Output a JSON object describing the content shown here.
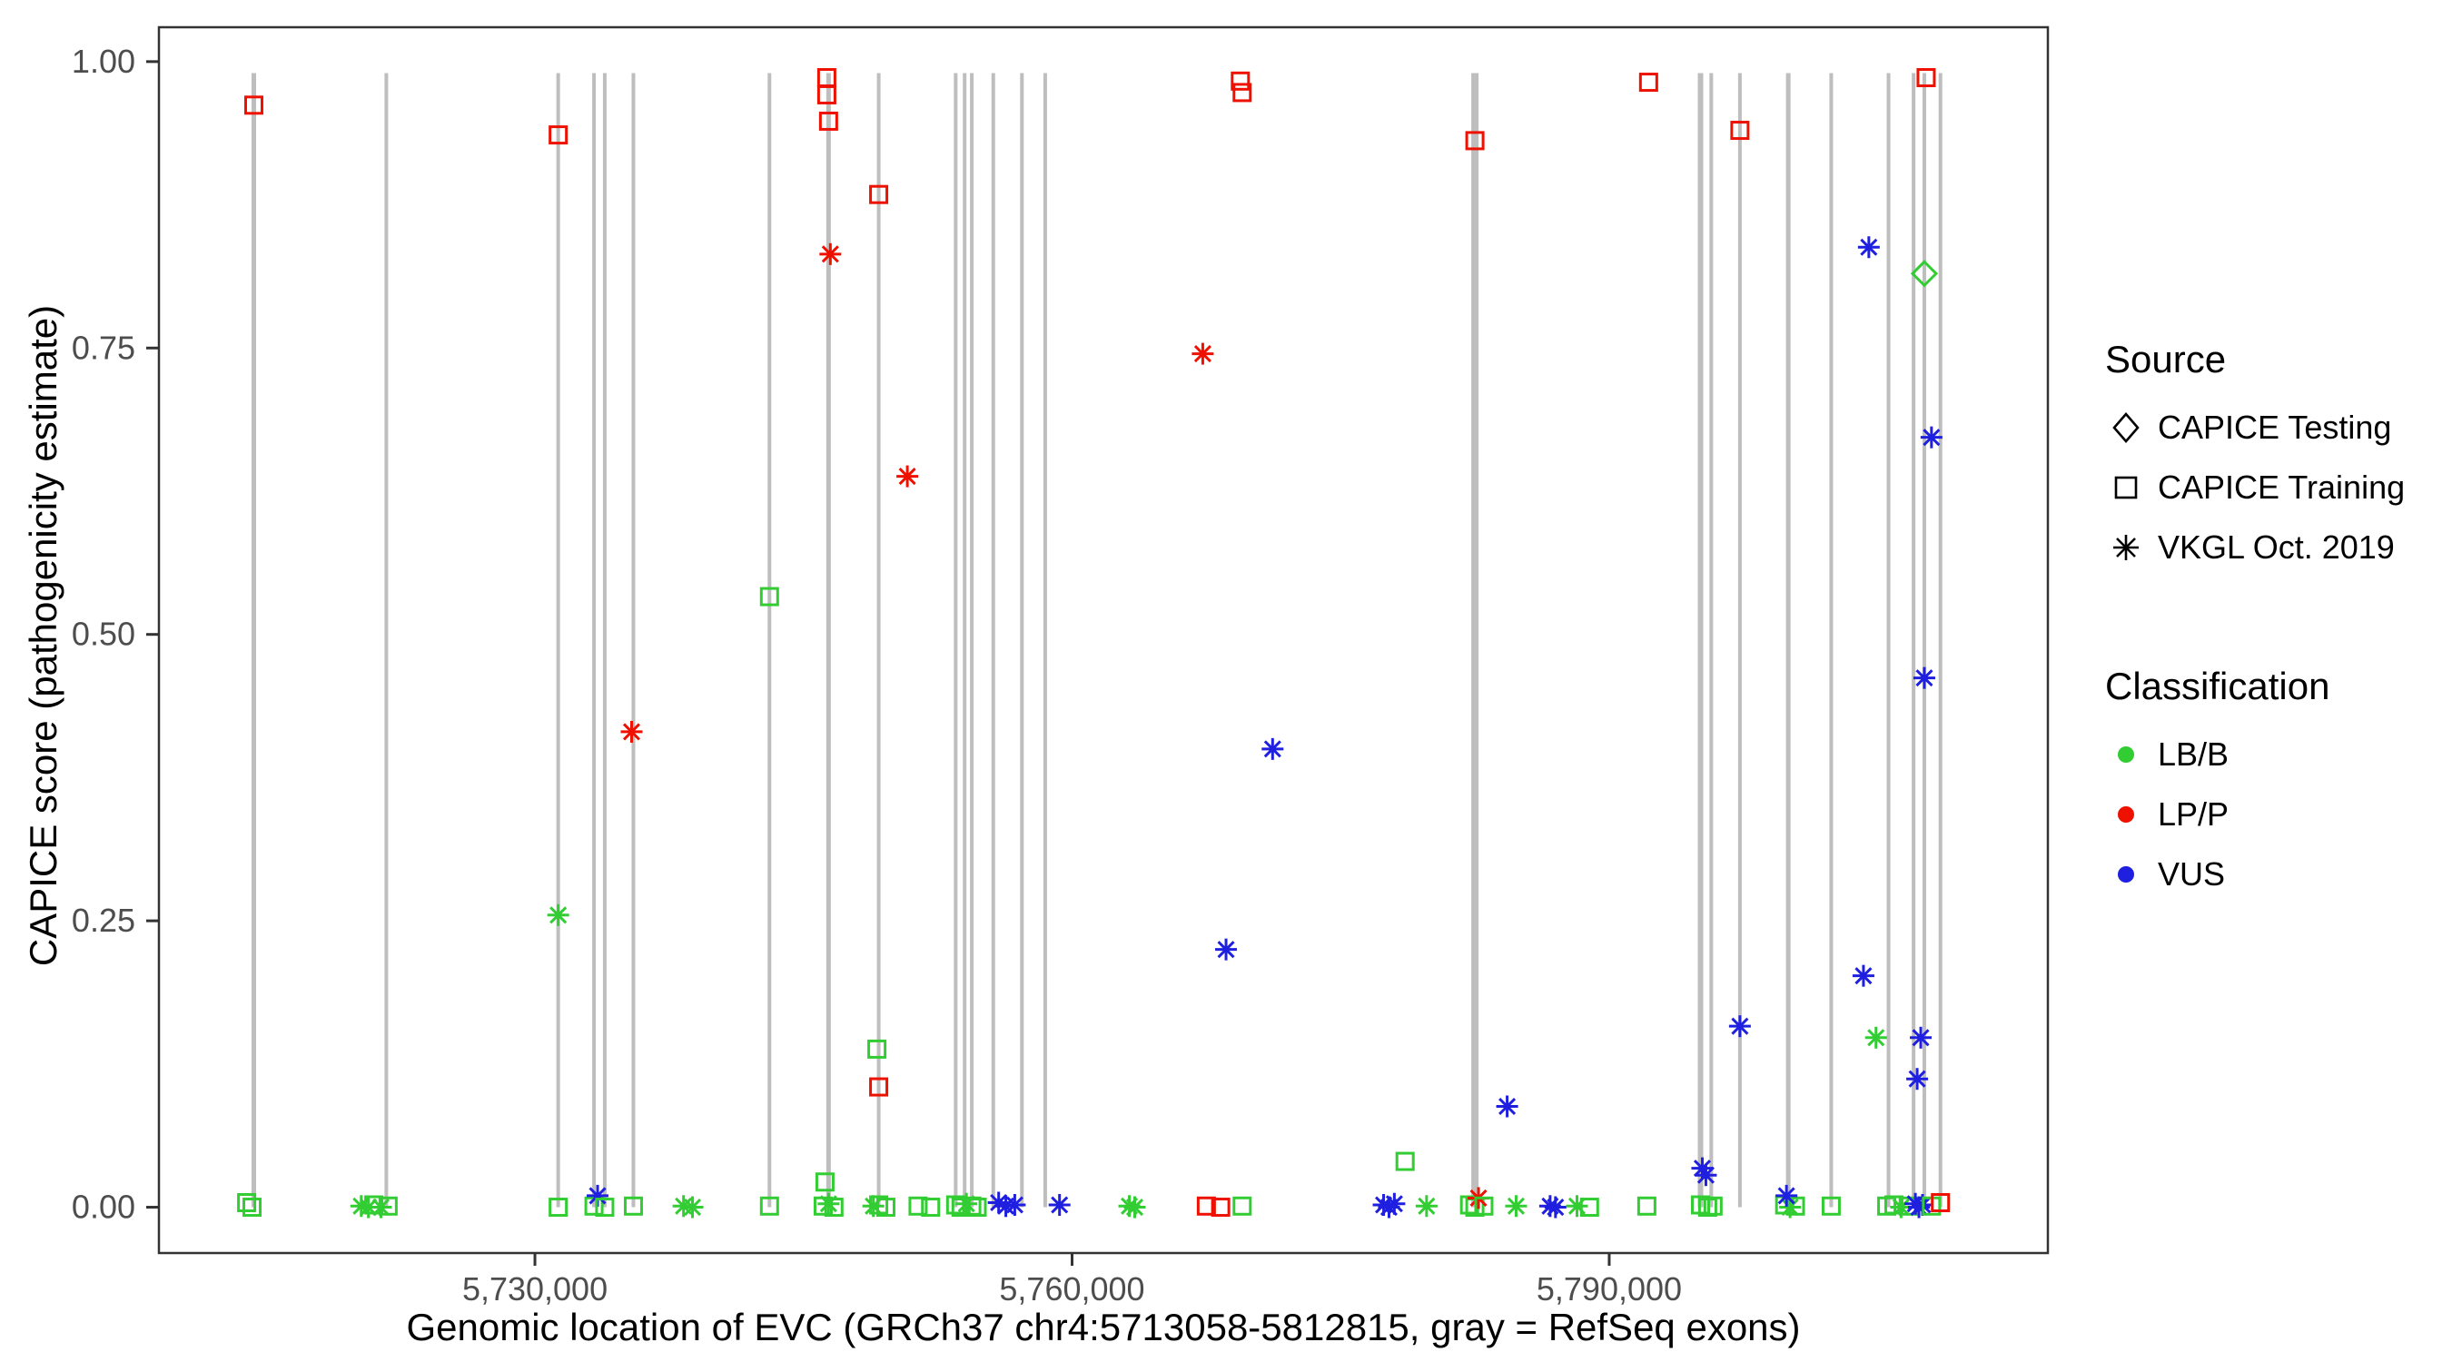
{
  "figure": {
    "xlabel": "Genomic location of EVC (GRCh37 chr4:5713058-5812815, gray = RefSeq exons)",
    "ylabel": "CAPICE score (pathogenicity estimate)"
  },
  "legend": {
    "source": {
      "title": "Source",
      "items": [
        {
          "label": "CAPICE Testing",
          "shape": "diamond"
        },
        {
          "label": "CAPICE Training",
          "shape": "square"
        },
        {
          "label": "VKGL Oct. 2019",
          "shape": "asterisk"
        }
      ]
    },
    "classification": {
      "title": "Classification",
      "items": [
        {
          "label": "LB/B",
          "color": "#32CD32"
        },
        {
          "label": "LP/P",
          "color": "#EE1100"
        },
        {
          "label": "VUS",
          "color": "#1F1FE0"
        }
      ]
    }
  },
  "chart_data": {
    "type": "scatter",
    "title": "",
    "xlabel": "Genomic location of EVC (GRCh37 chr4:5713058-5812815, gray = RefSeq exons)",
    "ylabel": "CAPICE score (pathogenicity estimate)",
    "xlim": [
      5713058,
      5812815
    ],
    "ylim": [
      0,
      1
    ],
    "x_ticks": [
      {
        "value": 5730000,
        "label": "5,730,000"
      },
      {
        "value": 5760000,
        "label": "5,760,000"
      },
      {
        "value": 5790000,
        "label": "5,790,000"
      }
    ],
    "y_ticks": [
      {
        "value": 0.0,
        "label": "0.00"
      },
      {
        "value": 0.25,
        "label": "0.25"
      },
      {
        "value": 0.5,
        "label": "0.50"
      },
      {
        "value": 0.75,
        "label": "0.75"
      },
      {
        "value": 1.0,
        "label": "1.00"
      }
    ],
    "exon_color": "#BEBEBE",
    "exons": [
      {
        "x": 5714300,
        "w": 5
      },
      {
        "x": 5721700,
        "w": 4
      },
      {
        "x": 5731300,
        "w": 4
      },
      {
        "x": 5733300,
        "w": 4
      },
      {
        "x": 5733900,
        "w": 4
      },
      {
        "x": 5735500,
        "w": 4
      },
      {
        "x": 5743100,
        "w": 4
      },
      {
        "x": 5746400,
        "w": 5
      },
      {
        "x": 5749200,
        "w": 4
      },
      {
        "x": 5753500,
        "w": 4
      },
      {
        "x": 5754000,
        "w": 4
      },
      {
        "x": 5754400,
        "w": 4
      },
      {
        "x": 5755600,
        "w": 4
      },
      {
        "x": 5757200,
        "w": 4
      },
      {
        "x": 5758500,
        "w": 4
      },
      {
        "x": 5782500,
        "w": 8
      },
      {
        "x": 5795100,
        "w": 6
      },
      {
        "x": 5795700,
        "w": 4
      },
      {
        "x": 5797300,
        "w": 4
      },
      {
        "x": 5800000,
        "w": 5
      },
      {
        "x": 5802400,
        "w": 4
      },
      {
        "x": 5805600,
        "w": 4
      },
      {
        "x": 5807000,
        "w": 4
      },
      {
        "x": 5807600,
        "w": 4
      },
      {
        "x": 5808500,
        "w": 4
      }
    ],
    "colors": {
      "LB/B": "#32CD32",
      "LP/P": "#EE1100",
      "VUS": "#1F1FE0"
    },
    "shapes": {
      "testing": "diamond",
      "training": "square",
      "vkgl": "asterisk"
    },
    "points": [
      {
        "x": 5714300,
        "y": 0.962,
        "source": "training",
        "cls": "LP/P"
      },
      {
        "x": 5731300,
        "y": 0.936,
        "source": "training",
        "cls": "LP/P"
      },
      {
        "x": 5746300,
        "y": 0.986,
        "source": "training",
        "cls": "LP/P"
      },
      {
        "x": 5746300,
        "y": 0.971,
        "source": "training",
        "cls": "LP/P"
      },
      {
        "x": 5746400,
        "y": 0.948,
        "source": "training",
        "cls": "LP/P"
      },
      {
        "x": 5749200,
        "y": 0.884,
        "source": "training",
        "cls": "LP/P"
      },
      {
        "x": 5746500,
        "y": 0.832,
        "source": "vkgl",
        "cls": "LP/P"
      },
      {
        "x": 5750800,
        "y": 0.638,
        "source": "vkgl",
        "cls": "LP/P"
      },
      {
        "x": 5735400,
        "y": 0.415,
        "source": "vkgl",
        "cls": "LP/P"
      },
      {
        "x": 5767300,
        "y": 0.745,
        "source": "vkgl",
        "cls": "LP/P"
      },
      {
        "x": 5769400,
        "y": 0.983,
        "source": "training",
        "cls": "LP/P"
      },
      {
        "x": 5769500,
        "y": 0.973,
        "source": "training",
        "cls": "LP/P"
      },
      {
        "x": 5782500,
        "y": 0.931,
        "source": "training",
        "cls": "LP/P"
      },
      {
        "x": 5792200,
        "y": 0.982,
        "source": "training",
        "cls": "LP/P"
      },
      {
        "x": 5797300,
        "y": 0.94,
        "source": "training",
        "cls": "LP/P"
      },
      {
        "x": 5807700,
        "y": 0.986,
        "source": "training",
        "cls": "LP/P"
      },
      {
        "x": 5749200,
        "y": 0.105,
        "source": "training",
        "cls": "LP/P"
      },
      {
        "x": 5743100,
        "y": 0.533,
        "source": "training",
        "cls": "LB/B"
      },
      {
        "x": 5749100,
        "y": 0.138,
        "source": "training",
        "cls": "LB/B"
      },
      {
        "x": 5731300,
        "y": 0.255,
        "source": "vkgl",
        "cls": "LB/B"
      },
      {
        "x": 5807600,
        "y": 0.815,
        "source": "testing",
        "cls": "LB/B"
      },
      {
        "x": 5804900,
        "y": 0.148,
        "source": "vkgl",
        "cls": "LB/B"
      },
      {
        "x": 5778600,
        "y": 0.04,
        "source": "training",
        "cls": "LB/B"
      },
      {
        "x": 5746200,
        "y": 0.022,
        "source": "training",
        "cls": "LB/B"
      },
      {
        "x": 5804500,
        "y": 0.838,
        "source": "vkgl",
        "cls": "VUS"
      },
      {
        "x": 5808000,
        "y": 0.672,
        "source": "vkgl",
        "cls": "VUS"
      },
      {
        "x": 5807600,
        "y": 0.462,
        "source": "vkgl",
        "cls": "VUS"
      },
      {
        "x": 5771200,
        "y": 0.4,
        "source": "vkgl",
        "cls": "VUS"
      },
      {
        "x": 5768600,
        "y": 0.225,
        "source": "vkgl",
        "cls": "VUS"
      },
      {
        "x": 5804200,
        "y": 0.202,
        "source": "vkgl",
        "cls": "VUS"
      },
      {
        "x": 5797300,
        "y": 0.158,
        "source": "vkgl",
        "cls": "VUS"
      },
      {
        "x": 5807400,
        "y": 0.148,
        "source": "vkgl",
        "cls": "VUS"
      },
      {
        "x": 5807200,
        "y": 0.112,
        "source": "vkgl",
        "cls": "VUS"
      },
      {
        "x": 5784300,
        "y": 0.088,
        "source": "vkgl",
        "cls": "VUS"
      },
      {
        "x": 5795200,
        "y": 0.034,
        "source": "vkgl",
        "cls": "VUS"
      },
      {
        "x": 5795400,
        "y": 0.028,
        "source": "vkgl",
        "cls": "VUS"
      },
      {
        "x": 5713900,
        "y": 0.004,
        "source": "training",
        "cls": "LB/B"
      },
      {
        "x": 5714200,
        "y": 0.0,
        "source": "training",
        "cls": "LB/B"
      },
      {
        "x": 5720300,
        "y": 0.001,
        "source": "vkgl",
        "cls": "LB/B"
      },
      {
        "x": 5720700,
        "y": 0.0,
        "source": "vkgl",
        "cls": "LB/B"
      },
      {
        "x": 5721000,
        "y": 0.002,
        "source": "training",
        "cls": "LB/B"
      },
      {
        "x": 5721400,
        "y": 0.0,
        "source": "vkgl",
        "cls": "LB/B"
      },
      {
        "x": 5721800,
        "y": 0.001,
        "source": "training",
        "cls": "LB/B"
      },
      {
        "x": 5731300,
        "y": 0.0,
        "source": "training",
        "cls": "LB/B"
      },
      {
        "x": 5733300,
        "y": 0.001,
        "source": "training",
        "cls": "LB/B"
      },
      {
        "x": 5733500,
        "y": 0.01,
        "source": "vkgl",
        "cls": "VUS"
      },
      {
        "x": 5733900,
        "y": 0.0,
        "source": "training",
        "cls": "LB/B"
      },
      {
        "x": 5735500,
        "y": 0.001,
        "source": "training",
        "cls": "LB/B"
      },
      {
        "x": 5738300,
        "y": 0.001,
        "source": "vkgl",
        "cls": "LB/B"
      },
      {
        "x": 5738800,
        "y": 0.0,
        "source": "vkgl",
        "cls": "LB/B"
      },
      {
        "x": 5743100,
        "y": 0.001,
        "source": "training",
        "cls": "LB/B"
      },
      {
        "x": 5746100,
        "y": 0.001,
        "source": "training",
        "cls": "LB/B"
      },
      {
        "x": 5746400,
        "y": 0.003,
        "source": "vkgl",
        "cls": "LB/B"
      },
      {
        "x": 5746700,
        "y": 0.0,
        "source": "training",
        "cls": "LB/B"
      },
      {
        "x": 5748900,
        "y": 0.001,
        "source": "vkgl",
        "cls": "LB/B"
      },
      {
        "x": 5749200,
        "y": 0.002,
        "source": "training",
        "cls": "LB/B"
      },
      {
        "x": 5749600,
        "y": 0.0,
        "source": "training",
        "cls": "LB/B"
      },
      {
        "x": 5751400,
        "y": 0.001,
        "source": "training",
        "cls": "LB/B"
      },
      {
        "x": 5752100,
        "y": 0.0,
        "source": "training",
        "cls": "LB/B"
      },
      {
        "x": 5753500,
        "y": 0.002,
        "source": "training",
        "cls": "LB/B"
      },
      {
        "x": 5753800,
        "y": 0.0,
        "source": "training",
        "cls": "LB/B"
      },
      {
        "x": 5754100,
        "y": 0.003,
        "source": "vkgl",
        "cls": "LB/B"
      },
      {
        "x": 5754400,
        "y": 0.001,
        "source": "training",
        "cls": "LB/B"
      },
      {
        "x": 5754700,
        "y": 0.0,
        "source": "training",
        "cls": "LB/B"
      },
      {
        "x": 5755900,
        "y": 0.004,
        "source": "vkgl",
        "cls": "VUS"
      },
      {
        "x": 5756300,
        "y": 0.001,
        "source": "vkgl",
        "cls": "VUS"
      },
      {
        "x": 5756800,
        "y": 0.002,
        "source": "vkgl",
        "cls": "VUS"
      },
      {
        "x": 5759300,
        "y": 0.002,
        "source": "vkgl",
        "cls": "VUS"
      },
      {
        "x": 5763200,
        "y": 0.001,
        "source": "vkgl",
        "cls": "LB/B"
      },
      {
        "x": 5763500,
        "y": 0.0,
        "source": "vkgl",
        "cls": "LB/B"
      },
      {
        "x": 5767500,
        "y": 0.001,
        "source": "training",
        "cls": "LP/P"
      },
      {
        "x": 5768300,
        "y": 0.0,
        "source": "training",
        "cls": "LP/P"
      },
      {
        "x": 5769500,
        "y": 0.001,
        "source": "training",
        "cls": "LB/B"
      },
      {
        "x": 5777400,
        "y": 0.002,
        "source": "vkgl",
        "cls": "VUS"
      },
      {
        "x": 5777700,
        "y": 0.0,
        "source": "vkgl",
        "cls": "VUS"
      },
      {
        "x": 5778000,
        "y": 0.003,
        "source": "vkgl",
        "cls": "VUS"
      },
      {
        "x": 5779800,
        "y": 0.001,
        "source": "vkgl",
        "cls": "LB/B"
      },
      {
        "x": 5782200,
        "y": 0.002,
        "source": "training",
        "cls": "LB/B"
      },
      {
        "x": 5782500,
        "y": 0.0,
        "source": "training",
        "cls": "LB/B"
      },
      {
        "x": 5782700,
        "y": 0.008,
        "source": "vkgl",
        "cls": "LP/P"
      },
      {
        "x": 5783000,
        "y": 0.001,
        "source": "training",
        "cls": "LB/B"
      },
      {
        "x": 5784800,
        "y": 0.001,
        "source": "vkgl",
        "cls": "LB/B"
      },
      {
        "x": 5786700,
        "y": 0.001,
        "source": "vkgl",
        "cls": "VUS"
      },
      {
        "x": 5787000,
        "y": 0.0,
        "source": "vkgl",
        "cls": "VUS"
      },
      {
        "x": 5788200,
        "y": 0.001,
        "source": "vkgl",
        "cls": "LB/B"
      },
      {
        "x": 5788900,
        "y": 0.0,
        "source": "training",
        "cls": "LB/B"
      },
      {
        "x": 5792100,
        "y": 0.001,
        "source": "training",
        "cls": "LB/B"
      },
      {
        "x": 5795100,
        "y": 0.002,
        "source": "training",
        "cls": "LB/B"
      },
      {
        "x": 5795500,
        "y": 0.0,
        "source": "training",
        "cls": "LB/B"
      },
      {
        "x": 5795800,
        "y": 0.001,
        "source": "training",
        "cls": "LB/B"
      },
      {
        "x": 5799800,
        "y": 0.002,
        "source": "training",
        "cls": "LB/B"
      },
      {
        "x": 5800100,
        "y": 0.0,
        "source": "vkgl",
        "cls": "LB/B"
      },
      {
        "x": 5800400,
        "y": 0.001,
        "source": "training",
        "cls": "LB/B"
      },
      {
        "x": 5799900,
        "y": 0.01,
        "source": "vkgl",
        "cls": "VUS"
      },
      {
        "x": 5802400,
        "y": 0.001,
        "source": "training",
        "cls": "LB/B"
      },
      {
        "x": 5805500,
        "y": 0.001,
        "source": "training",
        "cls": "LB/B"
      },
      {
        "x": 5805900,
        "y": 0.002,
        "source": "training",
        "cls": "LB/B"
      },
      {
        "x": 5806300,
        "y": 0.0,
        "source": "vkgl",
        "cls": "LB/B"
      },
      {
        "x": 5806700,
        "y": 0.001,
        "source": "training",
        "cls": "LB/B"
      },
      {
        "x": 5807100,
        "y": 0.003,
        "source": "vkgl",
        "cls": "VUS"
      },
      {
        "x": 5807300,
        "y": 0.0,
        "source": "vkgl",
        "cls": "VUS"
      },
      {
        "x": 5807500,
        "y": 0.002,
        "source": "vkgl",
        "cls": "VUS"
      },
      {
        "x": 5808000,
        "y": 0.001,
        "source": "training",
        "cls": "LB/B"
      },
      {
        "x": 5808500,
        "y": 0.004,
        "source": "training",
        "cls": "LP/P"
      }
    ]
  }
}
